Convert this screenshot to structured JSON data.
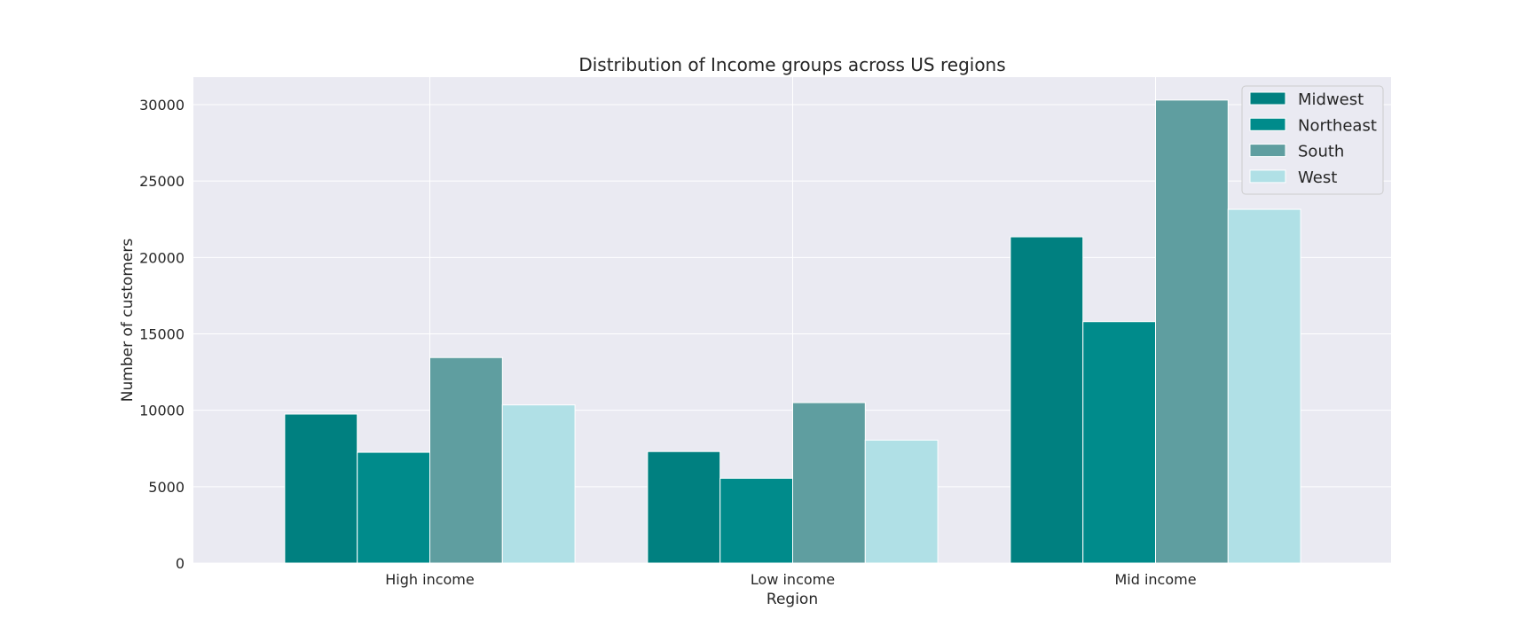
{
  "chart_data": {
    "type": "bar",
    "title": "Distribution of Income groups across US regions",
    "xlabel": "Region",
    "ylabel": "Number of customers",
    "categories": [
      "High income",
      "Low income",
      "Mid income"
    ],
    "series": [
      {
        "name": "Midwest",
        "values": [
          9750,
          7300,
          21350
        ],
        "color": "#008080"
      },
      {
        "name": "Northeast",
        "values": [
          7250,
          5550,
          15800
        ],
        "color": "#008b8b"
      },
      {
        "name": "South",
        "values": [
          13450,
          10500,
          30300
        ],
        "color": "#5f9ea0"
      },
      {
        "name": "West",
        "values": [
          10350,
          8050,
          23150
        ],
        "color": "#b0e0e6"
      }
    ],
    "ylim": [
      0,
      31800
    ],
    "yticks": [
      0,
      5000,
      10000,
      15000,
      20000,
      25000,
      30000
    ],
    "grid": true,
    "legend": "top-right",
    "background": "#eaeaf2"
  }
}
